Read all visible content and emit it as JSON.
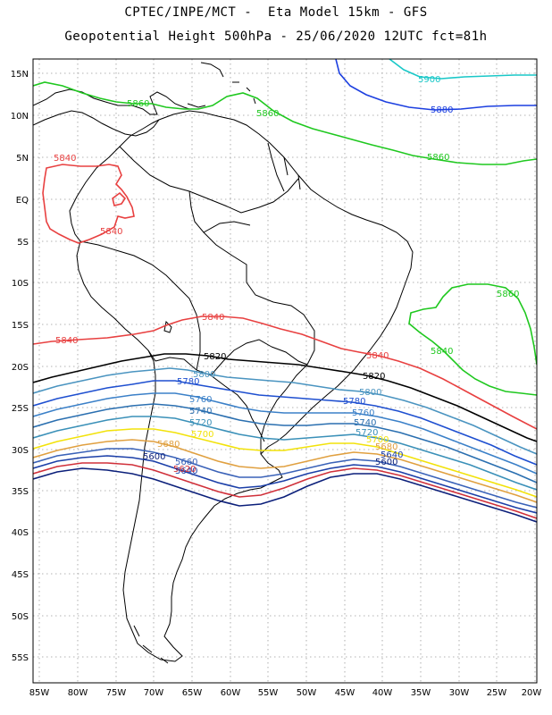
{
  "title": {
    "line1": "CPTEC/INPE/MCT -  Eta Model 15km - GFS",
    "line2": "Geopotential Height 500hPa - 25/06/2020 12UTC fct=81h"
  },
  "axes": {
    "lat_labels": [
      "15N",
      "10N",
      "5N",
      "EQ",
      "5S",
      "10S",
      "15S",
      "20S",
      "25S",
      "30S",
      "35S",
      "40S",
      "45S",
      "50S",
      "55S"
    ],
    "lon_labels": [
      "85W",
      "80W",
      "75W",
      "70W",
      "65W",
      "60W",
      "55W",
      "50W",
      "45W",
      "40W",
      "35W",
      "30W",
      "25W",
      "20W"
    ]
  },
  "contours": {
    "colors": {
      "c5600": "#0b1f7a",
      "c5620": "#d0303a",
      "c5640": "#1b3fa8",
      "c5660": "#3a62b8",
      "c5680": "#e0a040",
      "c5700": "#f2e20a",
      "c5720": "#3a90b8",
      "c5740": "#2a6fb0",
      "c5760": "#3b80c8",
      "c5780": "#1e4fd0",
      "c5800": "#4a94c0",
      "c5820": "#000000",
      "c5840": "#e84040",
      "c5860": "#1fc81f",
      "c5880": "#1c3fe0",
      "c5900": "#1ac8c8"
    },
    "labels": {
      "l5900": "5900",
      "l5880": "5880",
      "l5860_n1": "5860",
      "l5860_n2": "5860",
      "l5860_n3": "5860",
      "l5860_e": "5860",
      "l5840_nw1": "5840",
      "l5840_nw2": "5840",
      "l5840_s1": "5840",
      "l5840_s2": "5840",
      "l5840_s3": "5840",
      "l5840_e": "5840",
      "l5820_w": "5820",
      "l5820_e": "5820",
      "l5800_w": "5800",
      "l5800_e": "5800",
      "l5780_w": "5780",
      "l5780_e": "5780",
      "l5760_w": "5760",
      "l5760_e": "5760",
      "l5740_w": "5740",
      "l5740_e": "5740",
      "l5720_w": "5720",
      "l5720_e": "5720",
      "l5700_w": "5700",
      "l5700_e": "5700",
      "l5680_w": "5680",
      "l5680_e": "5680",
      "l5660_w": "5660",
      "l5640_e": "5640",
      "l5640_w": "5640",
      "l5620_w": "5620",
      "l5600_w": "5600",
      "l5600_e": "5600"
    }
  }
}
